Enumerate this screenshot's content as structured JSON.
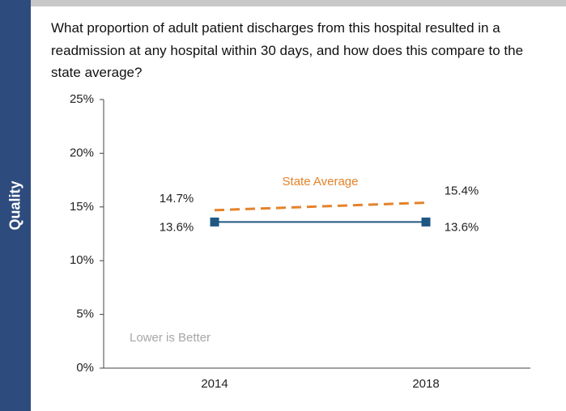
{
  "sidebar_label": "Quality",
  "chart_data": {
    "type": "line",
    "title": "What proportion of adult patient discharges from this hospital resulted in a readmission at any hospital within 30 days, and how does this compare to the state average?",
    "categories": [
      "2014",
      "2018"
    ],
    "series": [
      {
        "color": "#1f5783",
        "values": [
          13.6,
          13.6
        ],
        "value_labels": [
          "13.6%",
          "13.6%"
        ],
        "dashed": false,
        "marker": true
      },
      {
        "name": "State Average",
        "color": "#e5822a",
        "values": [
          14.7,
          15.4
        ],
        "value_labels": [
          "14.7%",
          "15.4%"
        ],
        "dashed": true,
        "marker": false
      }
    ],
    "ylim": [
      0,
      25
    ],
    "yticks": [
      {
        "value": 0,
        "label": "0%"
      },
      {
        "value": 5,
        "label": "5%"
      },
      {
        "value": 10,
        "label": "10%"
      },
      {
        "value": 15,
        "label": "15%"
      },
      {
        "value": 20,
        "label": "20%"
      },
      {
        "value": 25,
        "label": "25%"
      }
    ],
    "annotations": [
      "Lower is Better"
    ],
    "grid": false
  }
}
